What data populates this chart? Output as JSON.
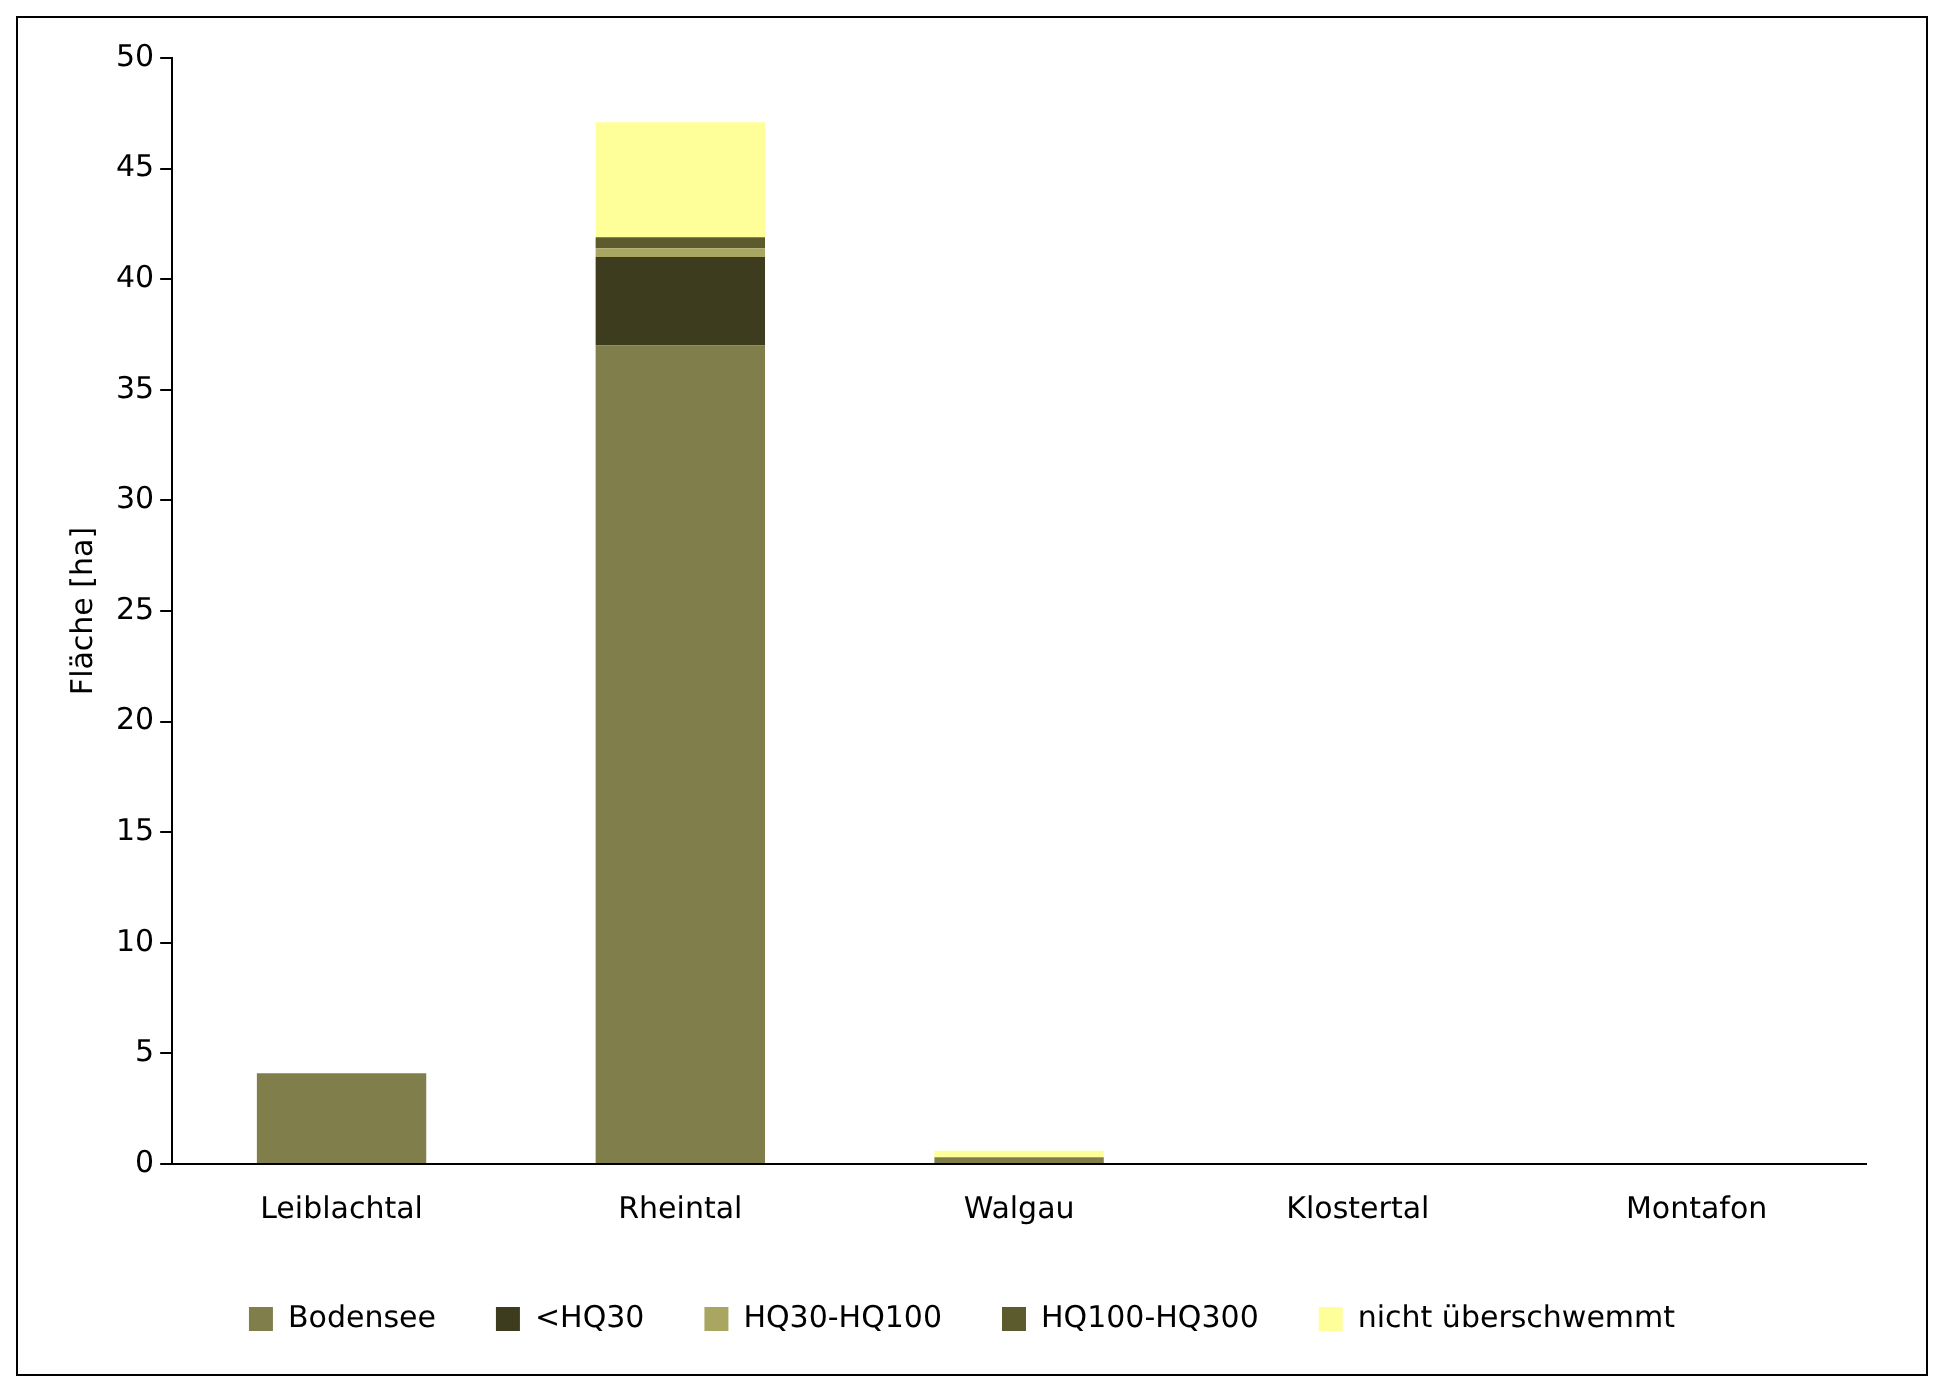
{
  "chart_data": {
    "type": "bar",
    "stacked": true,
    "ylabel": "Fläche [ha]",
    "categories": [
      "Leiblachtal",
      "Rheintal",
      "Walgau",
      "Klostertal",
      "Montafon"
    ],
    "series": [
      {
        "name": "Bodensee",
        "color": "#807f4c",
        "values": [
          4.1,
          37,
          0.3,
          0,
          0
        ]
      },
      {
        "name": "<HQ30",
        "color": "#3d3c1f",
        "values": [
          0,
          4,
          0,
          0,
          0
        ]
      },
      {
        "name": "HQ30-HQ100",
        "color": "#a8a660",
        "values": [
          0,
          0.4,
          0,
          0,
          0
        ]
      },
      {
        "name": "HQ100-HQ300",
        "color": "#5c5b2e",
        "values": [
          0,
          0.5,
          0,
          0,
          0
        ]
      },
      {
        "name": "nicht überschwemmt",
        "color": "#ffff99",
        "values": [
          0,
          5.2,
          0.3,
          0,
          0
        ]
      }
    ],
    "ylim": [
      0,
      50
    ],
    "yticks": [
      0,
      5,
      10,
      15,
      20,
      25,
      30,
      35,
      40,
      45,
      50
    ],
    "grid": false,
    "legend": "bottom"
  }
}
